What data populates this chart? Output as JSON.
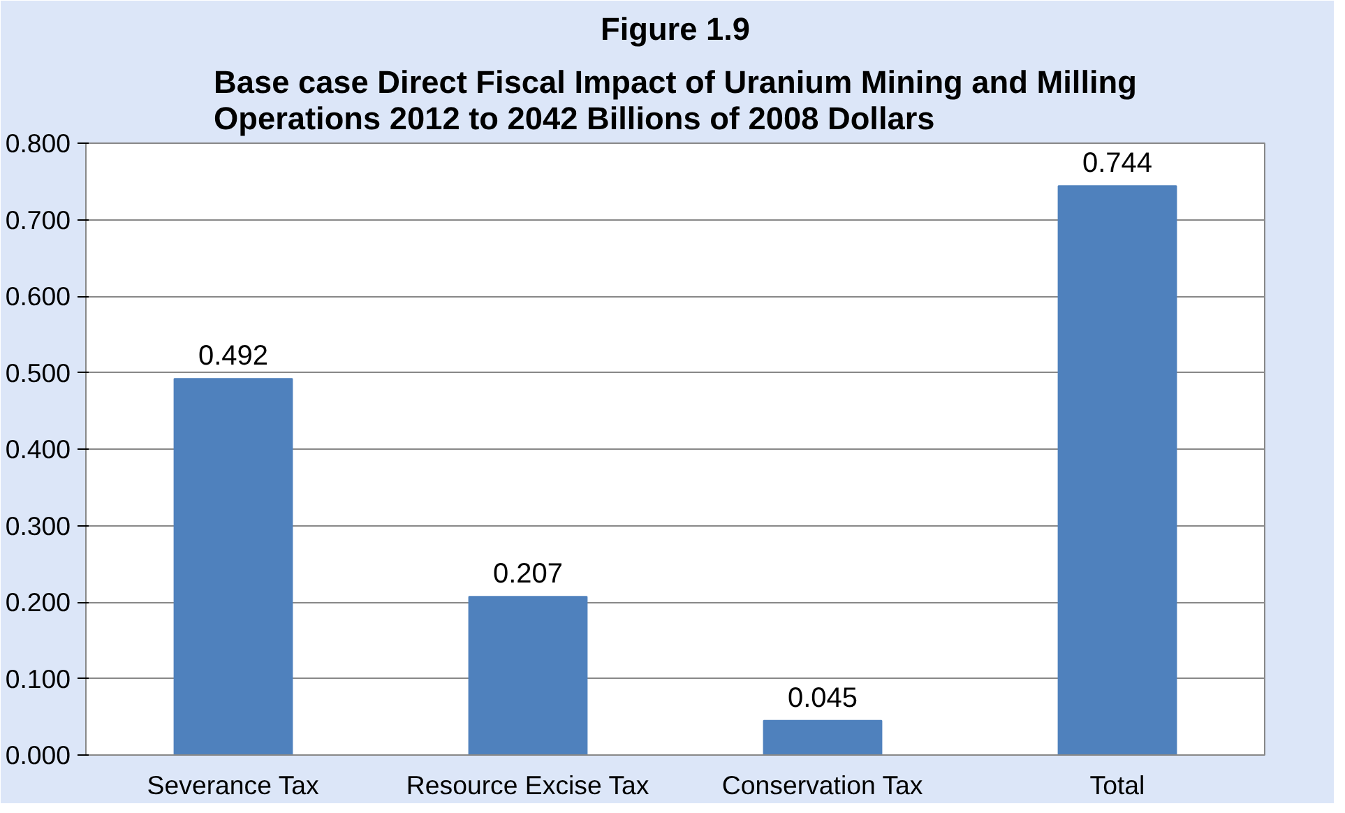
{
  "chart_data": {
    "type": "bar",
    "title": "Figure 1.9",
    "subtitle": "Base case Direct Fiscal Impact of Uranium Mining and Milling Operations 2012 to 2042 Billions of 2008 Dollars",
    "categories": [
      "Severance Tax",
      "Resource Excise Tax",
      "Conservation Tax",
      "Total"
    ],
    "values": [
      0.492,
      0.207,
      0.045,
      0.744
    ],
    "color": "#4f81bd",
    "ylim": [
      0,
      0.8
    ],
    "yticks": [
      {
        "value": 0,
        "label": "0.000"
      },
      {
        "value": 0.1,
        "label": "0.100"
      },
      {
        "value": 0.2,
        "label": "0.200"
      },
      {
        "value": 0.3,
        "label": "0.300"
      },
      {
        "value": 0.4,
        "label": "0.400"
      },
      {
        "value": 0.5,
        "label": "0.500"
      },
      {
        "value": 0.6,
        "label": "0.600"
      },
      {
        "value": 0.7,
        "label": "0.700"
      },
      {
        "value": 0.8,
        "label": "0.800"
      }
    ],
    "grid": "y",
    "data_labels": true
  }
}
